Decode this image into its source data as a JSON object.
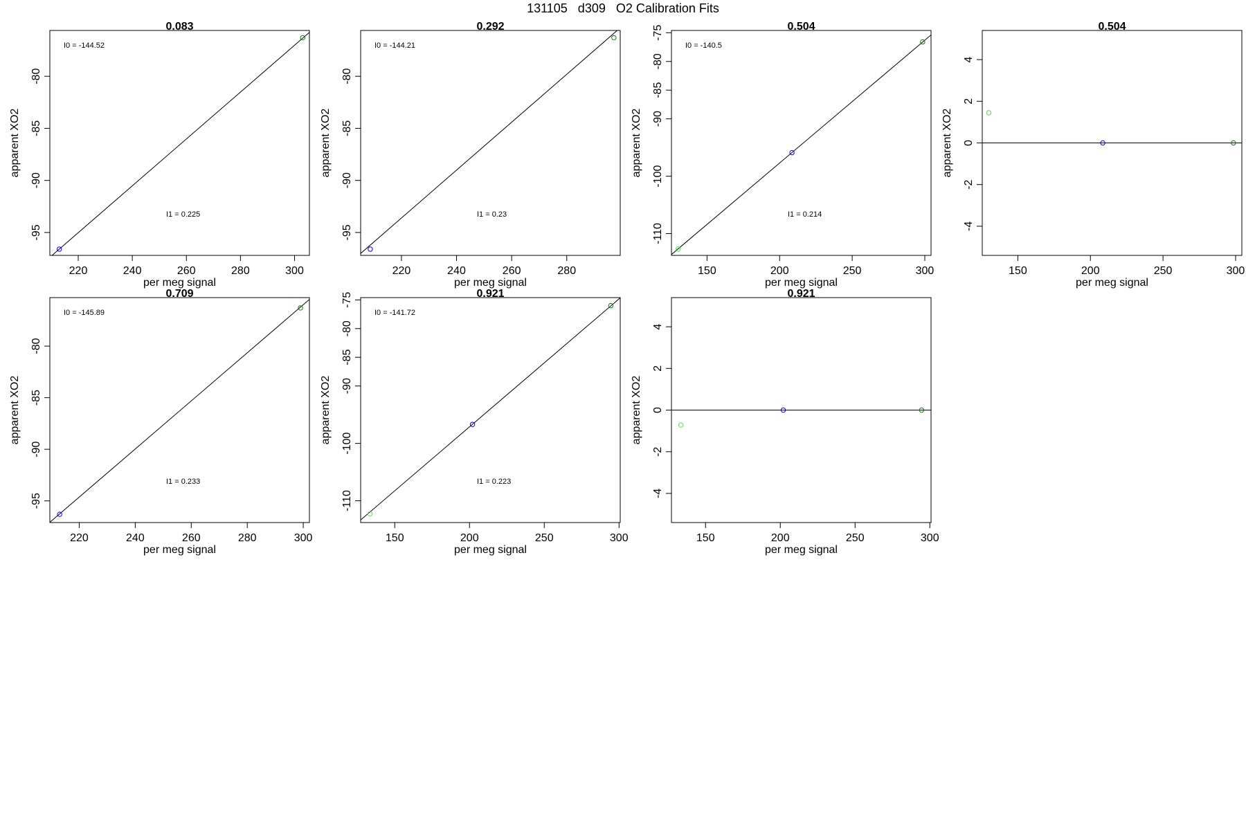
{
  "figure": {
    "title": "131105   d309   O2 Calibration Fits"
  },
  "colors": {
    "line": "#000000",
    "point_blue": "#0000ff",
    "point_green_dark": "#008000",
    "point_green_light": "#55dd55"
  },
  "chart_data": [
    {
      "type": "scatter",
      "title": "0.083",
      "xlabel": "per meg signal",
      "ylabel": "apparent XO2",
      "xlim": [
        209.5,
        305.5
      ],
      "ylim": [
        -97.2,
        -75.6
      ],
      "xticks": [
        220,
        240,
        260,
        280,
        300
      ],
      "yticks": [
        -80,
        -85,
        -90,
        -95
      ],
      "fit_line": {
        "intercept": -144.52,
        "slope": 0.225
      },
      "annotations": {
        "i0": "I0 =  -144.52",
        "i1": "I1 =  0.225"
      },
      "points": [
        {
          "x": 213,
          "y": -96.6,
          "color": "#0000ff"
        },
        {
          "x": 303,
          "y": -76.3,
          "color": "#008000"
        }
      ]
    },
    {
      "type": "scatter",
      "title": "0.292",
      "xlabel": "per meg signal",
      "ylabel": "apparent XO2",
      "xlim": [
        205.2,
        299.4
      ],
      "ylim": [
        -97.2,
        -75.6
      ],
      "xticks": [
        220,
        240,
        260,
        280
      ],
      "yticks": [
        -80,
        -85,
        -90,
        -95
      ],
      "fit_line": {
        "intercept": -144.21,
        "slope": 0.23
      },
      "annotations": {
        "i0": "I0 =  -144.21",
        "i1": "I1 =  0.23"
      },
      "points": [
        {
          "x": 208.7,
          "y": -96.6,
          "color": "#0000ff"
        },
        {
          "x": 297.1,
          "y": -76.3,
          "color": "#008000"
        }
      ]
    },
    {
      "type": "scatter",
      "title": "0.504",
      "xlabel": "per meg signal",
      "ylabel": "apparent XO2",
      "xlim": [
        125.5,
        304.3
      ],
      "ylim": [
        -113.8,
        -74.6
      ],
      "xticks": [
        150,
        200,
        250,
        300
      ],
      "yticks": [
        -75,
        -80,
        -85,
        -90,
        -100,
        -110
      ],
      "fit_line": {
        "intercept": -140.5,
        "slope": 0.214
      },
      "annotations": {
        "i0": "I0 =  -140.5",
        "i1": "I1 =  0.214"
      },
      "points": [
        {
          "x": 130,
          "y": -112.7,
          "color": "#55dd55"
        },
        {
          "x": 208.5,
          "y": -95.9,
          "color": "#0000ff"
        },
        {
          "x": 298.5,
          "y": -76.6,
          "color": "#008000"
        }
      ]
    },
    {
      "type": "scatter",
      "title": "0.504",
      "xlabel": "per meg signal",
      "ylabel": "apparent XO2",
      "xlim": [
        125.5,
        304.3
      ],
      "ylim": [
        -5.4,
        5.4
      ],
      "xticks": [
        150,
        200,
        250,
        300
      ],
      "yticks": [
        4,
        2,
        0,
        -2,
        -4
      ],
      "hline": 0,
      "points": [
        {
          "x": 130,
          "y": 1.45,
          "color": "#55dd55"
        },
        {
          "x": 208.5,
          "y": 0.0,
          "color": "#0000ff"
        },
        {
          "x": 298.5,
          "y": 0.0,
          "color": "#008000"
        }
      ]
    },
    {
      "type": "scatter",
      "title": "0.709",
      "xlabel": "per meg signal",
      "ylabel": "apparent XO2",
      "xlim": [
        209.5,
        302.2
      ],
      "ylim": [
        -97.1,
        -75.3
      ],
      "xticks": [
        220,
        240,
        260,
        280,
        300
      ],
      "yticks": [
        -80,
        -85,
        -90,
        -95
      ],
      "fit_line": {
        "intercept": -145.89,
        "slope": 0.233
      },
      "annotations": {
        "i0": "I0 =  -145.89",
        "i1": "I1 =  0.233"
      },
      "points": [
        {
          "x": 213,
          "y": -96.3,
          "color": "#0000ff"
        },
        {
          "x": 299,
          "y": -76.3,
          "color": "#008000"
        }
      ]
    },
    {
      "type": "scatter",
      "title": "0.921",
      "xlabel": "per meg signal",
      "ylabel": "apparent XO2",
      "xlim": [
        127.2,
        300.8
      ],
      "ylim": [
        -113.8,
        -74.6
      ],
      "xticks": [
        150,
        200,
        250,
        300
      ],
      "yticks": [
        -75,
        -80,
        -85,
        -90,
        -100,
        -110
      ],
      "fit_line": {
        "intercept": -141.72,
        "slope": 0.223
      },
      "annotations": {
        "i0": "I0 =  -141.72",
        "i1": "I1 =  0.223"
      },
      "points": [
        {
          "x": 133.5,
          "y": -112.3,
          "color": "#55dd55"
        },
        {
          "x": 202,
          "y": -96.7,
          "color": "#0000ff"
        },
        {
          "x": 294.5,
          "y": -76.0,
          "color": "#008000"
        }
      ]
    },
    {
      "type": "scatter",
      "title": "0.921",
      "xlabel": "per meg signal",
      "ylabel": "apparent XO2",
      "xlim": [
        127.2,
        300.8
      ],
      "ylim": [
        -5.4,
        5.4
      ],
      "xticks": [
        150,
        200,
        250,
        300
      ],
      "yticks": [
        4,
        2,
        0,
        -2,
        -4
      ],
      "hline": 0,
      "points": [
        {
          "x": 133.5,
          "y": -0.72,
          "color": "#55dd55"
        },
        {
          "x": 202,
          "y": 0.0,
          "color": "#0000ff"
        },
        {
          "x": 294.5,
          "y": 0.0,
          "color": "#008000"
        }
      ]
    }
  ]
}
